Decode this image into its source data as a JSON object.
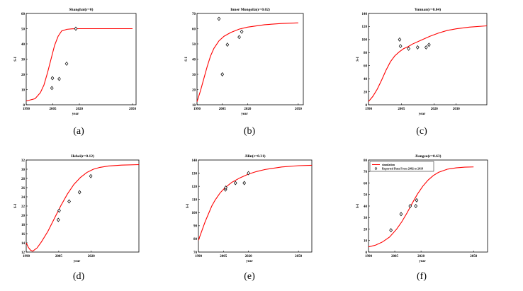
{
  "chart_data": [
    {
      "type": "line",
      "title": "Shanghai(r=0)",
      "caption": "(a)",
      "xlabel": "year",
      "ylabel": "S-I",
      "xlim": [
        1990,
        2052
      ],
      "ylim": [
        0,
        60
      ],
      "xticks": [
        1990,
        2005,
        2020,
        2050
      ],
      "yticks": [
        0,
        10,
        20,
        30,
        40,
        50,
        60
      ],
      "series": [
        {
          "kind": "line",
          "color": "#ff0000",
          "x": [
            1990,
            1995,
            1998,
            2000,
            2002,
            2004,
            2006,
            2008,
            2010,
            2013,
            2016,
            2020,
            2030,
            2040,
            2050
          ],
          "y": [
            2.5,
            4,
            8,
            13,
            21,
            30,
            39,
            45,
            48.5,
            49.6,
            49.9,
            50,
            50,
            50,
            50
          ]
        },
        {
          "kind": "points",
          "x": [
            2004.5,
            2004.8,
            2008.6,
            2012.8,
            2018
          ],
          "y": [
            11,
            17.5,
            17,
            27,
            50
          ]
        }
      ]
    },
    {
      "type": "line",
      "title": "Inner Mongolia(r=0.02)",
      "caption": "(b)",
      "xlabel": "year",
      "ylabel": "S-I",
      "xlim": [
        1990,
        2053
      ],
      "ylim": [
        10,
        70
      ],
      "xticks": [
        1990,
        2005,
        2020,
        2050
      ],
      "yticks": [
        10,
        20,
        30,
        40,
        50,
        60,
        70
      ],
      "series": [
        {
          "kind": "line",
          "color": "#ff0000",
          "x": [
            1990,
            1992,
            1994,
            1996,
            1998,
            2000,
            2003,
            2006,
            2010,
            2015,
            2020,
            2030,
            2040,
            2050
          ],
          "y": [
            12,
            19,
            27,
            35,
            42,
            47,
            52,
            55,
            57.5,
            59.7,
            61,
            62.6,
            63.4,
            63.8
          ]
        },
        {
          "kind": "points",
          "x": [
            2003,
            2005,
            2008,
            2015,
            2016.5
          ],
          "y": [
            66.5,
            30,
            49.5,
            54.5,
            58
          ]
        }
      ]
    },
    {
      "type": "line",
      "title": "Yunnan(r=0.04)",
      "caption": "(c)",
      "xlabel": "year",
      "ylabel": "S-I",
      "xlim": [
        1990,
        2044
      ],
      "ylim": [
        0,
        140
      ],
      "xticks": [
        1990,
        2005,
        2020,
        2030
      ],
      "yticks": [
        0,
        20,
        40,
        60,
        80,
        100,
        120,
        140
      ],
      "series": [
        {
          "kind": "line",
          "color": "#ff0000",
          "x": [
            1990,
            1991,
            1992,
            1994,
            1996,
            1998,
            2000,
            2002,
            2004,
            2006,
            2008,
            2010,
            2014,
            2018,
            2022,
            2026,
            2030,
            2036,
            2044
          ],
          "y": [
            5,
            9,
            13,
            24,
            38,
            53,
            66,
            75,
            81,
            86,
            89,
            93,
            99,
            105,
            110,
            114,
            116.5,
            119,
            121
          ]
        },
        {
          "kind": "points",
          "x": [
            2004.2,
            2004.6,
            2008.3,
            2012.4,
            2016.3,
            2017.6
          ],
          "y": [
            100,
            90,
            86,
            88,
            88,
            92
          ]
        }
      ]
    },
    {
      "type": "line",
      "title": "Hebei(r=0.12)",
      "caption": "(d)",
      "xlabel": "year",
      "ylabel": "S-I",
      "xlim": [
        1990,
        2042
      ],
      "ylim": [
        12,
        32
      ],
      "xticks": [
        1990,
        2005,
        2020
      ],
      "yticks": [
        12,
        14,
        16,
        18,
        20,
        22,
        24,
        26,
        28,
        30,
        32
      ],
      "series": [
        {
          "kind": "line",
          "color": "#ff0000",
          "x": [
            1990,
            1991,
            1992,
            1993,
            1995,
            1997,
            2000,
            2003,
            2006,
            2009,
            2012,
            2015,
            2018,
            2021,
            2024,
            2028,
            2034,
            2042
          ],
          "y": [
            14,
            13,
            12.4,
            12.2,
            12.9,
            14.2,
            16.5,
            19.3,
            22.1,
            24.6,
            26.7,
            28.2,
            29.3,
            30,
            30.4,
            30.7,
            30.9,
            31
          ]
        },
        {
          "kind": "points",
          "x": [
            2004.8,
            2005.2,
            2009.8,
            2014.6,
            2019.8
          ],
          "y": [
            19,
            21,
            23,
            25,
            28.5
          ]
        }
      ]
    },
    {
      "type": "line",
      "title": "Jilin(r=0.31)",
      "caption": "(e)",
      "xlabel": "year",
      "ylabel": "S-I",
      "xlim": [
        1990,
        2058
      ],
      "ylim": [
        70,
        140
      ],
      "xticks": [
        1990,
        2005,
        2020,
        2050
      ],
      "yticks": [
        70,
        80,
        90,
        100,
        110,
        120,
        130,
        140
      ],
      "series": [
        {
          "kind": "line",
          "color": "#ff0000",
          "x": [
            1990,
            1992,
            1994,
            1996,
            1998,
            2000,
            2003,
            2006,
            2010,
            2015,
            2020,
            2025,
            2030,
            2040,
            2050,
            2058
          ],
          "y": [
            79,
            86,
            93,
            99,
            105,
            109.5,
            115,
            119,
            123,
            126.5,
            129.3,
            131.3,
            132.8,
            134.7,
            135.7,
            136
          ]
        },
        {
          "kind": "points",
          "x": [
            2006.2,
            2006.4,
            2012.2,
            2017.5,
            2020
          ],
          "y": [
            117.5,
            119,
            122.5,
            122.5,
            130
          ]
        }
      ]
    },
    {
      "type": "line",
      "title": "Jiangsu(r=0.63)",
      "caption": "(f)",
      "xlabel": "year",
      "ylabel": "S-I",
      "xlim": [
        1990,
        2058
      ],
      "ylim": [
        0,
        80
      ],
      "xticks": [
        1990,
        2005,
        2020,
        2050
      ],
      "yticks": [
        0,
        10,
        20,
        30,
        40,
        50,
        60,
        70,
        80
      ],
      "legend": {
        "position": "top-left",
        "entries": [
          "simulation",
          "Reported Data From 2002 to 2018"
        ]
      },
      "series": [
        {
          "kind": "line",
          "color": "#ff0000",
          "x": [
            1990,
            1994,
            1998,
            2002,
            2006,
            2009,
            2012,
            2015,
            2018,
            2021,
            2024,
            2027,
            2030,
            2035,
            2040,
            2045,
            2050
          ],
          "y": [
            4.5,
            6,
            8.8,
            13,
            19.8,
            26.3,
            34,
            42.5,
            50.5,
            57.2,
            62.5,
            66.5,
            69.3,
            72,
            73.2,
            73.8,
            74
          ]
        },
        {
          "kind": "points",
          "x": [
            2002.8,
            2008.6,
            2013.8,
            2017,
            2017.5
          ],
          "y": [
            19,
            33,
            40,
            40,
            45
          ]
        }
      ]
    }
  ]
}
